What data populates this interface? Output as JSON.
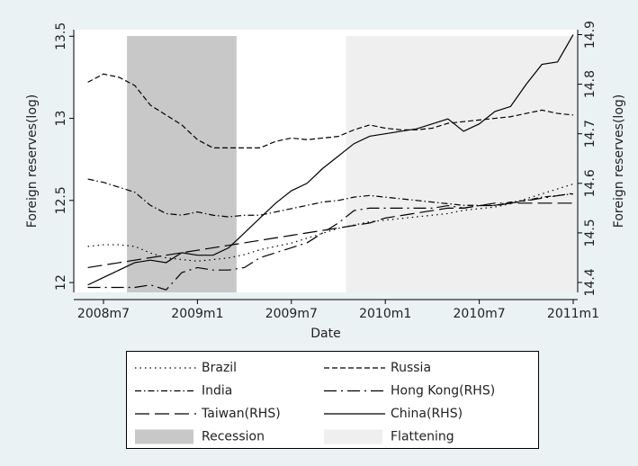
{
  "chart_data": {
    "type": "line",
    "x_label": "Date",
    "y_label": "Foreign reserves(log)",
    "y2_label": "Foreign reserves(log)",
    "categories": [
      null,
      "2008m7",
      null,
      null,
      null,
      null,
      null,
      "2009m1",
      null,
      null,
      null,
      null,
      null,
      "2009m7",
      null,
      null,
      null,
      null,
      null,
      "2010m1",
      null,
      null,
      null,
      null,
      null,
      "2010m7",
      null,
      null,
      null,
      null,
      null,
      "2011m1"
    ],
    "ylim": [
      11.94,
      13.54
    ],
    "yticks": [
      12,
      12.5,
      13,
      13.5
    ],
    "y2lim": [
      14.38,
      14.91
    ],
    "y2ticks": [
      14.4,
      14.5,
      14.6,
      14.7,
      14.8,
      14.9
    ],
    "grid": false,
    "series": [
      {
        "name": "Brazil",
        "color": "#000000",
        "style": "dotted",
        "values": [
          12.22,
          12.23,
          12.23,
          12.22,
          12.18,
          12.15,
          12.14,
          12.13,
          12.14,
          12.15,
          12.17,
          12.2,
          12.22,
          12.24,
          12.27,
          12.3,
          12.33,
          12.35,
          12.37,
          12.38,
          12.39,
          12.4,
          12.41,
          12.42,
          12.44,
          12.45,
          12.46,
          12.48,
          12.51,
          12.54,
          12.57,
          12.6
        ]
      },
      {
        "name": "Russia",
        "color": "#000000",
        "style": "dashed",
        "values": [
          13.22,
          13.27,
          13.25,
          13.2,
          13.08,
          13.02,
          12.96,
          12.87,
          12.82,
          12.82,
          12.82,
          12.82,
          12.86,
          12.88,
          12.87,
          12.88,
          12.89,
          12.93,
          12.96,
          12.94,
          12.93,
          12.93,
          12.94,
          12.97,
          12.98,
          12.99,
          13.0,
          13.01,
          13.03,
          13.05,
          13.03,
          13.02
        ]
      },
      {
        "name": "India",
        "color": "#000000",
        "style": "dashdot",
        "values": [
          12.63,
          12.61,
          12.58,
          12.55,
          12.47,
          12.42,
          12.41,
          12.43,
          12.41,
          12.4,
          12.41,
          12.41,
          12.43,
          12.45,
          12.47,
          12.49,
          12.5,
          12.52,
          12.53,
          12.52,
          12.51,
          12.5,
          12.49,
          12.48,
          12.47,
          12.47,
          12.47,
          12.49,
          12.5,
          12.52,
          12.53,
          12.54
        ]
      },
      {
        "name": "Hong Kong(RHS)",
        "color": "#000000",
        "style": "longdashdot",
        "axis": "y2",
        "values": [
          14.39,
          14.39,
          14.39,
          14.39,
          14.395,
          14.385,
          14.42,
          14.43,
          14.425,
          14.425,
          14.43,
          14.45,
          14.46,
          14.47,
          14.48,
          14.5,
          14.52,
          14.545,
          14.55,
          14.55,
          14.55,
          14.55,
          14.55,
          14.555,
          14.55,
          14.555,
          14.56,
          14.56,
          14.565,
          14.57,
          14.575,
          14.58
        ]
      },
      {
        "name": "Taiwan(RHS)",
        "color": "#000000",
        "style": "longdash",
        "axis": "y2",
        "values": [
          14.43,
          14.435,
          14.44,
          14.445,
          14.45,
          14.455,
          14.46,
          14.465,
          14.47,
          14.475,
          14.48,
          14.485,
          14.49,
          14.495,
          14.5,
          14.505,
          14.51,
          14.515,
          14.52,
          14.53,
          14.535,
          14.54,
          14.545,
          14.55,
          14.55,
          14.555,
          14.555,
          14.56,
          14.56,
          14.56,
          14.56,
          14.56
        ]
      },
      {
        "name": "China(RHS)",
        "color": "#000000",
        "style": "solid",
        "axis": "y2",
        "values": [
          14.395,
          14.41,
          14.425,
          14.44,
          14.445,
          14.44,
          14.46,
          14.455,
          14.455,
          14.47,
          14.5,
          14.53,
          14.56,
          14.585,
          14.6,
          14.63,
          14.655,
          14.68,
          14.695,
          14.7,
          14.705,
          14.71,
          14.72,
          14.73,
          14.705,
          14.72,
          14.745,
          14.755,
          14.8,
          14.84,
          14.845,
          14.9
        ]
      }
    ],
    "shades": [
      {
        "name": "Recession",
        "color": "#c8c8c8",
        "from": 3,
        "to": 9
      },
      {
        "name": "Flattening",
        "color": "#efefef",
        "from": 17,
        "to": 31
      }
    ]
  }
}
